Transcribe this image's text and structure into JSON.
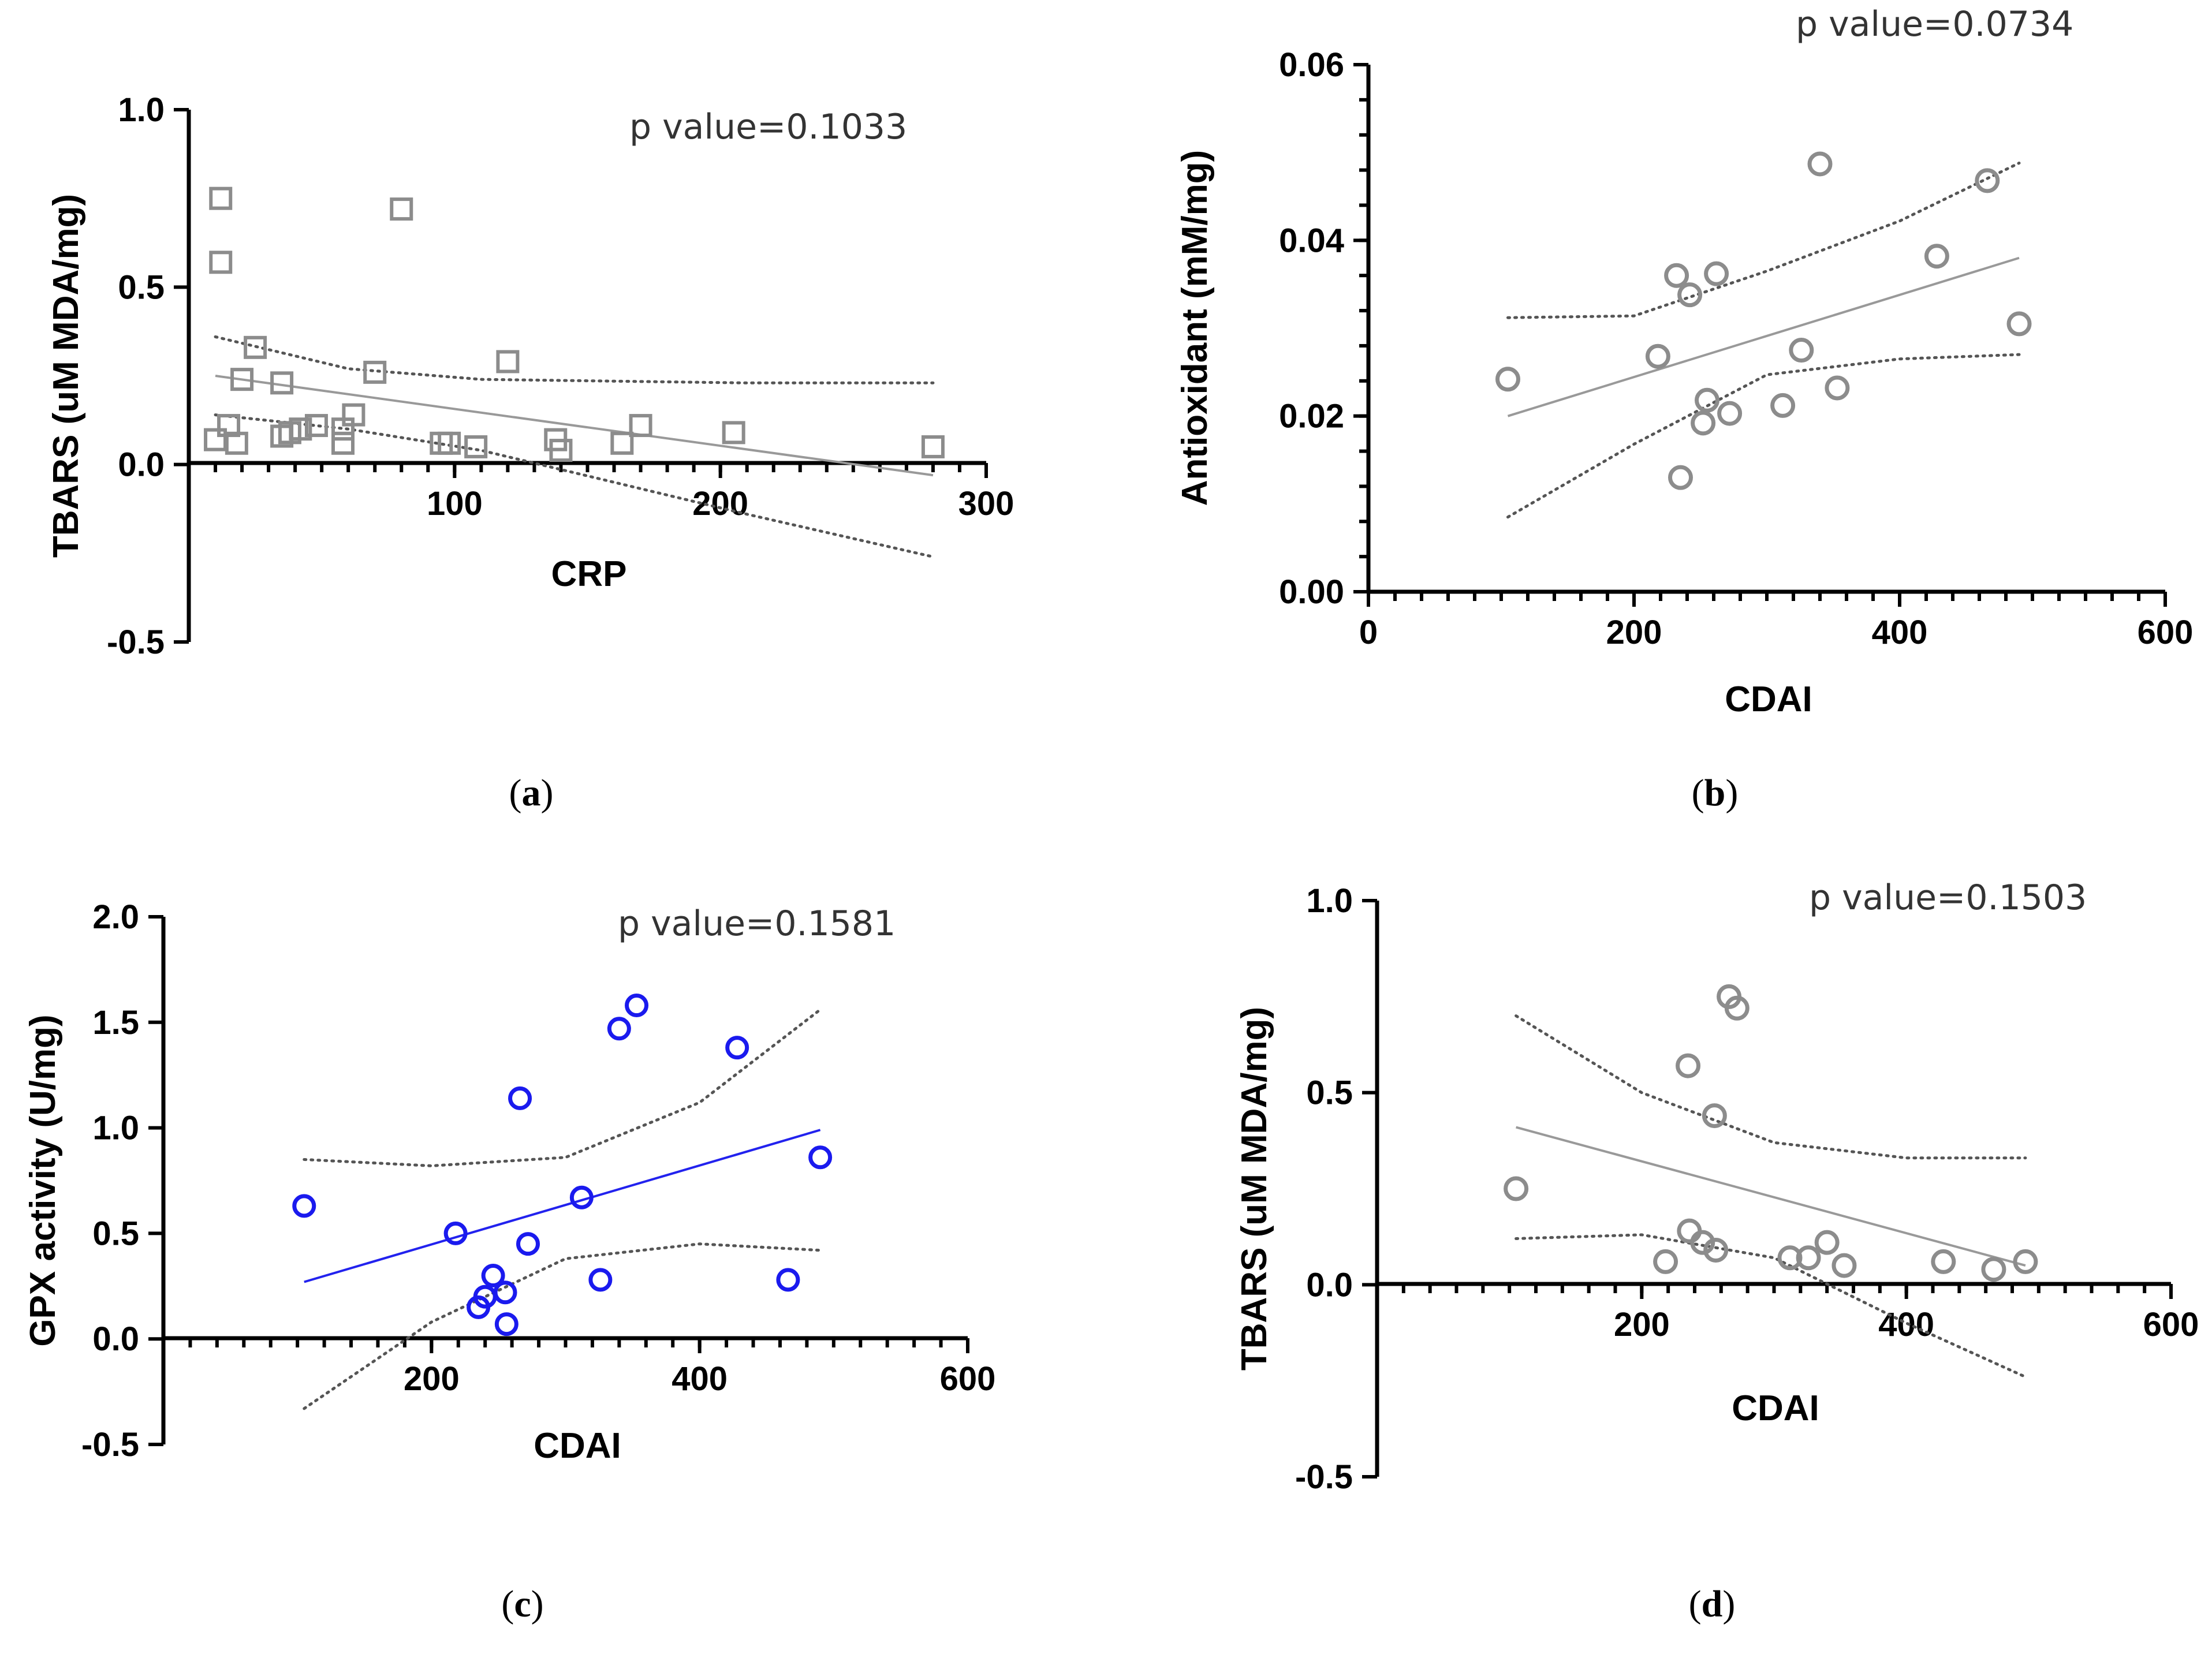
{
  "chart_data": [
    {
      "panel": "(a)",
      "panel_letter": "a",
      "type": "scatter",
      "title": "",
      "xlabel": "CRP",
      "ylabel": "TBARS (uM MDA/mg)",
      "annotation": "p value=0.1033",
      "xlim": [
        0,
        300
      ],
      "ylim": [
        -0.5,
        1.0
      ],
      "x_ticks": [
        100,
        200,
        300
      ],
      "x_tick_labels": [
        "100",
        "200",
        "300"
      ],
      "y_ticks": [
        -0.5,
        0.0,
        0.5,
        1.0
      ],
      "y_tick_labels": [
        "-0.5",
        "0.0",
        "0.5",
        "1.0"
      ],
      "x_minor_step": 10,
      "y_minor_step": null,
      "marker": "square",
      "color": "#8c8c8c",
      "line_color": "#999999",
      "points": {
        "x": [
          10,
          12,
          12,
          15,
          18,
          20,
          25,
          35,
          35,
          38,
          42,
          48,
          58,
          58,
          62,
          70,
          80,
          95,
          98,
          108,
          120,
          138,
          140,
          163,
          170,
          205,
          280
        ],
        "y": [
          0.07,
          0.57,
          0.75,
          0.11,
          0.06,
          0.24,
          0.33,
          0.23,
          0.08,
          0.09,
          0.1,
          0.11,
          0.06,
          0.1,
          0.14,
          0.26,
          0.72,
          0.06,
          0.06,
          0.05,
          0.29,
          0.07,
          0.04,
          0.06,
          0.11,
          0.09,
          0.05
        ]
      },
      "fit": {
        "x": [
          10,
          280
        ],
        "y": [
          0.25,
          -0.03
        ]
      },
      "ci_upper": {
        "x": [
          10,
          60,
          110,
          160,
          210,
          280
        ],
        "y": [
          0.36,
          0.27,
          0.24,
          0.235,
          0.23,
          0.23
        ]
      },
      "ci_lower": {
        "x": [
          10,
          60,
          110,
          160,
          210,
          280
        ],
        "y": [
          0.14,
          0.1,
          0.04,
          -0.05,
          -0.14,
          -0.26
        ]
      }
    },
    {
      "panel": "(b)",
      "panel_letter": "b",
      "type": "scatter",
      "title": "",
      "xlabel": "CDAI",
      "ylabel": "Antioxidant (mM/mg)",
      "annotation": "p value=0.0734",
      "xlim": [
        0,
        600
      ],
      "ylim": [
        0.0,
        0.06
      ],
      "x_ticks": [
        0,
        200,
        400,
        600
      ],
      "x_tick_labels": [
        "0",
        "200",
        "400",
        "600"
      ],
      "y_ticks": [
        0.0,
        0.02,
        0.04,
        0.06
      ],
      "y_tick_labels": [
        "0.00",
        "0.02",
        "0.04",
        "0.06"
      ],
      "x_minor_step": 20,
      "y_minor_step": 0.004,
      "marker": "circle",
      "color": "#8c8c8c",
      "line_color": "#999999",
      "points": {
        "x": [
          105,
          218,
          232,
          235,
          242,
          252,
          255,
          262,
          272,
          312,
          326,
          340,
          353,
          428,
          466,
          490
        ],
        "y": [
          0.0242,
          0.0268,
          0.036,
          0.013,
          0.0338,
          0.0192,
          0.0218,
          0.0362,
          0.0203,
          0.0212,
          0.0275,
          0.0487,
          0.0232,
          0.0382,
          0.0468,
          0.0305
        ]
      },
      "fit": {
        "x": [
          105,
          490
        ],
        "y": [
          0.02,
          0.038
        ]
      },
      "ci_upper": {
        "x": [
          105,
          200,
          300,
          400,
          490
        ],
        "y": [
          0.0312,
          0.0314,
          0.0365,
          0.0422,
          0.0488
        ]
      },
      "ci_lower": {
        "x": [
          105,
          200,
          300,
          400,
          490
        ],
        "y": [
          0.0085,
          0.0168,
          0.0247,
          0.0265,
          0.027
        ]
      }
    },
    {
      "panel": "(c)",
      "panel_letter": "c",
      "type": "scatter",
      "title": "",
      "xlabel": "CDAI",
      "ylabel": "GPX activity (U/mg)",
      "annotation": "p value=0.1581",
      "xlim": [
        0,
        600
      ],
      "ylim": [
        -0.5,
        2.0
      ],
      "x_ticks": [
        200,
        400,
        600
      ],
      "x_tick_labels": [
        "200",
        "400",
        "600"
      ],
      "y_ticks": [
        -0.5,
        0.0,
        0.5,
        1.0,
        1.5,
        2.0
      ],
      "y_tick_labels": [
        "-0.5",
        "0.0",
        "0.5",
        "1.0",
        "1.5",
        "2.0"
      ],
      "x_minor_step": 20,
      "y_minor_step": null,
      "marker": "circle",
      "color": "#1a1aee",
      "line_color": "#2222ee",
      "points": {
        "x": [
          105,
          218,
          235,
          240,
          246,
          255,
          256,
          266,
          272,
          312,
          326,
          340,
          353,
          428,
          466,
          490
        ],
        "y": [
          0.63,
          0.5,
          0.15,
          0.2,
          0.3,
          0.22,
          0.07,
          1.14,
          0.45,
          0.67,
          0.28,
          1.47,
          1.58,
          1.38,
          0.28,
          0.86
        ]
      },
      "fit": {
        "x": [
          105,
          490
        ],
        "y": [
          0.27,
          0.99
        ]
      },
      "ci_upper": {
        "x": [
          105,
          200,
          300,
          400,
          490
        ],
        "y": [
          0.85,
          0.82,
          0.86,
          1.12,
          1.56
        ]
      },
      "ci_lower": {
        "x": [
          105,
          200,
          300,
          400,
          490
        ],
        "y": [
          -0.33,
          0.08,
          0.38,
          0.45,
          0.42
        ]
      }
    },
    {
      "panel": "(d)",
      "panel_letter": "d",
      "type": "scatter",
      "title": "",
      "xlabel": "CDAI",
      "ylabel": "TBARS (uM MDA/mg)",
      "annotation": "p value=0.1503",
      "xlim": [
        0,
        600
      ],
      "ylim": [
        -0.5,
        1.0
      ],
      "x_ticks": [
        200,
        400,
        600
      ],
      "x_tick_labels": [
        "200",
        "400",
        "600"
      ],
      "y_ticks": [
        -0.5,
        0.0,
        0.5,
        1.0
      ],
      "y_tick_labels": [
        "-0.5",
        "0.0",
        "0.5",
        "1.0"
      ],
      "x_minor_step": 20,
      "y_minor_step": null,
      "marker": "circle",
      "color": "#8c8c8c",
      "line_color": "#999999",
      "points": {
        "x": [
          105,
          218,
          235,
          236,
          246,
          255,
          256,
          266,
          272,
          312,
          326,
          340,
          353,
          428,
          466,
          490
        ],
        "y": [
          0.25,
          0.06,
          0.57,
          0.14,
          0.11,
          0.44,
          0.09,
          0.75,
          0.72,
          0.07,
          0.07,
          0.11,
          0.05,
          0.06,
          0.04,
          0.06
        ]
      },
      "fit": {
        "x": [
          105,
          490
        ],
        "y": [
          0.41,
          0.05
        ]
      },
      "ci_upper": {
        "x": [
          105,
          200,
          300,
          400,
          490
        ],
        "y": [
          0.7,
          0.5,
          0.37,
          0.33,
          0.33
        ]
      },
      "ci_lower": {
        "x": [
          105,
          200,
          300,
          400,
          490
        ],
        "y": [
          0.12,
          0.13,
          0.07,
          -0.1,
          -0.24
        ]
      }
    }
  ]
}
